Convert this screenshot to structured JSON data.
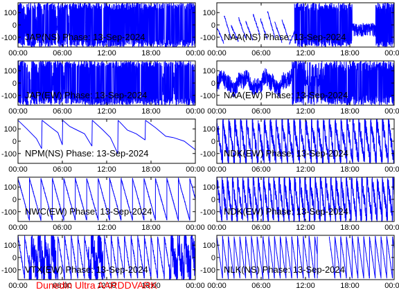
{
  "footer_label": "Dunedin Ultra AARDDVARK",
  "colors": {
    "trace": "#0000ff",
    "axes": "#000000",
    "footer": "#ff0000"
  },
  "chart_data": {
    "type": "line",
    "date": "13-Sep-2024",
    "xlim": [
      0,
      24
    ],
    "ylim": [
      -180,
      180
    ],
    "x_ticks": [
      0,
      6,
      12,
      18,
      24
    ],
    "x_tick_labels": [
      "00:00",
      "06:00",
      "12:00",
      "18:00",
      "00:00"
    ],
    "y_ticks": [
      100,
      0,
      -100
    ],
    "y_tick_labels": [
      "100",
      "0",
      "-100"
    ],
    "grid": false,
    "panels": [
      {
        "title": "JAP(NS) Phase: 13-Sep-2024",
        "pattern": "noisy",
        "spans": [
          [
            0,
            24
          ]
        ],
        "gaps": [
          [
            0.9,
            1.2
          ],
          [
            2.4,
            2.55
          ],
          [
            3.3,
            3.45
          ],
          [
            5.1,
            5.3
          ],
          [
            6.7,
            6.9
          ]
        ]
      },
      {
        "title": "NAA(NS) Phase: 13-Sep-2024",
        "pattern": "saw_then_noise",
        "spans": [
          [
            0,
            24
          ]
        ],
        "saw_end": 9.8,
        "saw_start": [
          -20,
          80,
          -10,
          60,
          30,
          90,
          50,
          110,
          20,
          40
        ],
        "saw_end_value": [
          -150,
          -120,
          -140,
          -110,
          -130,
          -90,
          -120,
          -100,
          -140,
          -130
        ],
        "noise_start": 10.5
      },
      {
        "title": "JAP(EW) Phase: 13-Sep-2024",
        "pattern": "noisy",
        "spans": [
          [
            0,
            24
          ]
        ],
        "gaps": [
          [
            1.4,
            1.7
          ],
          [
            2.6,
            2.8
          ],
          [
            4.6,
            4.8
          ],
          [
            6.1,
            6.3
          ],
          [
            19.5,
            19.7
          ],
          [
            21.0,
            21.2
          ]
        ]
      },
      {
        "title": "NAA(EW) Phase: 13-Sep-2024",
        "pattern": "mixed",
        "spans": [
          [
            0,
            24
          ]
        ],
        "saw_end": 10.2,
        "noise_start": 10.2
      },
      {
        "title": "NPM(NS) Phase: 13-Sep-2024",
        "pattern": "slow_saw",
        "spans": [
          [
            0,
            24
          ]
        ],
        "points": [
          [
            0.0,
            170
          ],
          [
            1.2,
            100
          ],
          [
            2.5,
            20
          ],
          [
            3.2,
            -60
          ],
          [
            3.25,
            170
          ],
          [
            4.5,
            110
          ],
          [
            5.4,
            70
          ],
          [
            6.0,
            -30
          ],
          [
            6.05,
            170
          ],
          [
            7.0,
            120
          ],
          [
            8.0,
            90
          ],
          [
            9.0,
            60
          ],
          [
            10.0,
            -40
          ],
          [
            10.05,
            170
          ],
          [
            11.5,
            90
          ],
          [
            12.5,
            30
          ],
          [
            13.5,
            -100
          ],
          [
            13.55,
            170
          ],
          [
            14.8,
            90
          ],
          [
            16.0,
            60
          ],
          [
            17.2,
            10
          ],
          [
            17.25,
            170
          ],
          [
            18.6,
            110
          ],
          [
            20.0,
            40
          ],
          [
            21.0,
            30
          ],
          [
            22.5,
            0
          ],
          [
            24.0,
            -70
          ]
        ]
      },
      {
        "title": "NDK(EW) Phase: 13-Sep-2024",
        "pattern": "dense_saw",
        "spans": [
          [
            0,
            24
          ]
        ],
        "period": 0.8
      },
      {
        "title": "NWC(EW) Phase: 13-Sep-2024",
        "pattern": "saw",
        "spans": [
          [
            0,
            24
          ]
        ],
        "period": 1.55
      },
      {
        "title": "NDK(EW) Phase: 13-Sep-2024",
        "pattern": "dense_saw",
        "spans": [
          [
            0,
            24
          ]
        ],
        "period": 0.7
      },
      {
        "title": "VTX(EW) Phase: 13-Sep-2024",
        "pattern": "noisy_saw",
        "spans": [
          [
            0,
            24
          ]
        ],
        "period": 0.9
      },
      {
        "title": "NLK(NS) Phase: 13-Sep-2024",
        "pattern": "saw_gap",
        "spans": [
          [
            0,
            13.6
          ],
          [
            15.2,
            24
          ]
        ],
        "period": 0.78
      }
    ]
  }
}
